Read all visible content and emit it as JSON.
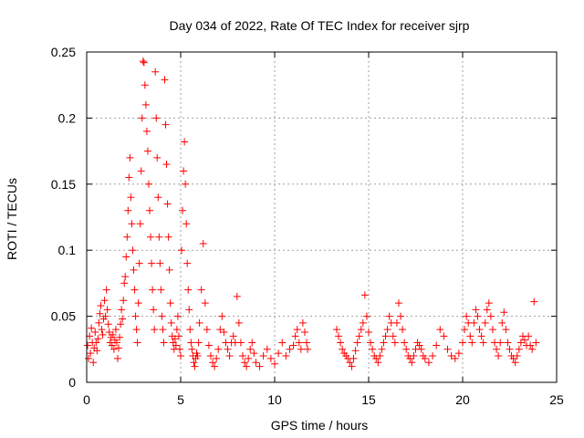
{
  "chart_data": {
    "type": "scatter",
    "title": "Day 034 of 2022, Rate Of TEC Index for receiver sjrp",
    "xlabel": "GPS time / hours",
    "ylabel": "ROTI / TECUs",
    "xlim": [
      0,
      25
    ],
    "ylim": [
      0,
      0.25
    ],
    "xticks": [
      0,
      5,
      10,
      15,
      20,
      25
    ],
    "yticks": [
      0,
      0.05,
      0.1,
      0.15,
      0.2,
      0.25
    ],
    "xtick_labels": [
      "0",
      "5",
      "10",
      "15",
      "20",
      "25"
    ],
    "ytick_labels": [
      "0",
      "0.05",
      "0.1",
      "0.15",
      "0.2",
      "0.25"
    ],
    "grid": true,
    "marker": "+",
    "series": [
      {
        "name": "ROTI",
        "color": "#ff0000",
        "points": [
          [
            0.05,
            0.028
          ],
          [
            0.1,
            0.018
          ],
          [
            0.15,
            0.035
          ],
          [
            0.2,
            0.022
          ],
          [
            0.25,
            0.041
          ],
          [
            0.3,
            0.03
          ],
          [
            0.35,
            0.015
          ],
          [
            0.4,
            0.026
          ],
          [
            0.45,
            0.038
          ],
          [
            0.5,
            0.03
          ],
          [
            0.55,
            0.024
          ],
          [
            0.6,
            0.033
          ],
          [
            0.65,
            0.045
          ],
          [
            0.7,
            0.052
          ],
          [
            0.75,
            0.058
          ],
          [
            0.8,
            0.04
          ],
          [
            0.85,
            0.036
          ],
          [
            0.9,
            0.048
          ],
          [
            0.95,
            0.062
          ],
          [
            1.0,
            0.05
          ],
          [
            1.05,
            0.07
          ],
          [
            1.1,
            0.055
          ],
          [
            1.15,
            0.044
          ],
          [
            1.2,
            0.038
          ],
          [
            1.25,
            0.03
          ],
          [
            1.3,
            0.034
          ],
          [
            1.35,
            0.028
          ],
          [
            1.4,
            0.036
          ],
          [
            1.45,
            0.025
          ],
          [
            1.5,
            0.032
          ],
          [
            1.55,
            0.04
          ],
          [
            1.6,
            0.03
          ],
          [
            1.65,
            0.018
          ],
          [
            1.7,
            0.026
          ],
          [
            1.75,
            0.034
          ],
          [
            1.8,
            0.044
          ],
          [
            1.85,
            0.055
          ],
          [
            1.9,
            0.048
          ],
          [
            1.95,
            0.062
          ],
          [
            2.0,
            0.075
          ],
          [
            2.05,
            0.08
          ],
          [
            2.1,
            0.095
          ],
          [
            2.15,
            0.11
          ],
          [
            2.2,
            0.13
          ],
          [
            2.25,
            0.155
          ],
          [
            2.3,
            0.17
          ],
          [
            2.35,
            0.14
          ],
          [
            2.4,
            0.12
          ],
          [
            2.45,
            0.1
          ],
          [
            2.5,
            0.085
          ],
          [
            2.55,
            0.07
          ],
          [
            2.6,
            0.05
          ],
          [
            2.65,
            0.04
          ],
          [
            2.7,
            0.03
          ],
          [
            2.75,
            0.06
          ],
          [
            2.8,
            0.09
          ],
          [
            2.85,
            0.12
          ],
          [
            2.9,
            0.16
          ],
          [
            2.95,
            0.2
          ],
          [
            3.0,
            0.243
          ],
          [
            3.05,
            0.242
          ],
          [
            3.1,
            0.225
          ],
          [
            3.15,
            0.21
          ],
          [
            3.2,
            0.19
          ],
          [
            3.25,
            0.175
          ],
          [
            3.3,
            0.15
          ],
          [
            3.35,
            0.13
          ],
          [
            3.4,
            0.11
          ],
          [
            3.45,
            0.09
          ],
          [
            3.5,
            0.07
          ],
          [
            3.55,
            0.055
          ],
          [
            3.6,
            0.04
          ],
          [
            3.65,
            0.235
          ],
          [
            3.7,
            0.2
          ],
          [
            3.75,
            0.17
          ],
          [
            3.8,
            0.14
          ],
          [
            3.85,
            0.11
          ],
          [
            3.9,
            0.09
          ],
          [
            3.95,
            0.07
          ],
          [
            4.0,
            0.05
          ],
          [
            4.05,
            0.04
          ],
          [
            4.1,
            0.03
          ],
          [
            4.15,
            0.229
          ],
          [
            4.2,
            0.195
          ],
          [
            4.25,
            0.165
          ],
          [
            4.3,
            0.135
          ],
          [
            4.35,
            0.11
          ],
          [
            4.4,
            0.085
          ],
          [
            4.45,
            0.06
          ],
          [
            4.5,
            0.045
          ],
          [
            4.55,
            0.035
          ],
          [
            4.6,
            0.03
          ],
          [
            4.65,
            0.025
          ],
          [
            4.7,
            0.033
          ],
          [
            4.75,
            0.028
          ],
          [
            4.8,
            0.04
          ],
          [
            4.85,
            0.05
          ],
          [
            4.9,
            0.035
          ],
          [
            4.95,
            0.025
          ],
          [
            5.0,
            0.02
          ],
          [
            5.05,
            0.1
          ],
          [
            5.1,
            0.13
          ],
          [
            5.15,
            0.16
          ],
          [
            5.2,
            0.182
          ],
          [
            5.25,
            0.15
          ],
          [
            5.3,
            0.12
          ],
          [
            5.35,
            0.09
          ],
          [
            5.4,
            0.07
          ],
          [
            5.45,
            0.055
          ],
          [
            5.5,
            0.04
          ],
          [
            5.55,
            0.03
          ],
          [
            5.6,
            0.025
          ],
          [
            5.65,
            0.02
          ],
          [
            5.7,
            0.015
          ],
          [
            5.75,
            0.012
          ],
          [
            5.8,
            0.018
          ],
          [
            5.85,
            0.022
          ],
          [
            5.9,
            0.02
          ],
          [
            5.95,
            0.03
          ],
          [
            6.0,
            0.045
          ],
          [
            6.1,
            0.07
          ],
          [
            6.2,
            0.105
          ],
          [
            6.3,
            0.06
          ],
          [
            6.4,
            0.04
          ],
          [
            6.5,
            0.028
          ],
          [
            6.6,
            0.02
          ],
          [
            6.7,
            0.015
          ],
          [
            6.8,
            0.012
          ],
          [
            6.9,
            0.018
          ],
          [
            7.0,
            0.025
          ],
          [
            7.1,
            0.04
          ],
          [
            7.2,
            0.05
          ],
          [
            7.3,
            0.038
          ],
          [
            7.4,
            0.03
          ],
          [
            7.5,
            0.025
          ],
          [
            7.6,
            0.02
          ],
          [
            7.7,
            0.03
          ],
          [
            7.8,
            0.035
          ],
          [
            7.9,
            0.03
          ],
          [
            8.0,
            0.065
          ],
          [
            8.1,
            0.045
          ],
          [
            8.2,
            0.03
          ],
          [
            8.3,
            0.02
          ],
          [
            8.4,
            0.015
          ],
          [
            8.5,
            0.012
          ],
          [
            8.6,
            0.018
          ],
          [
            8.7,
            0.025
          ],
          [
            8.8,
            0.03
          ],
          [
            8.9,
            0.022
          ],
          [
            9.0,
            0.015
          ],
          [
            9.2,
            0.012
          ],
          [
            9.4,
            0.02
          ],
          [
            9.6,
            0.025
          ],
          [
            9.8,
            0.018
          ],
          [
            10.0,
            0.014
          ],
          [
            10.2,
            0.022
          ],
          [
            10.4,
            0.03
          ],
          [
            10.6,
            0.02
          ],
          [
            10.8,
            0.025
          ],
          [
            11.0,
            0.028
          ],
          [
            11.1,
            0.035
          ],
          [
            11.2,
            0.04
          ],
          [
            11.3,
            0.03
          ],
          [
            11.4,
            0.025
          ],
          [
            11.5,
            0.045
          ],
          [
            11.6,
            0.038
          ],
          [
            11.7,
            0.03
          ],
          [
            11.75,
            0.025
          ],
          [
            13.3,
            0.04
          ],
          [
            13.4,
            0.035
          ],
          [
            13.5,
            0.03
          ],
          [
            13.6,
            0.025
          ],
          [
            13.7,
            0.022
          ],
          [
            13.8,
            0.02
          ],
          [
            13.9,
            0.018
          ],
          [
            14.0,
            0.015
          ],
          [
            14.1,
            0.012
          ],
          [
            14.2,
            0.018
          ],
          [
            14.3,
            0.024
          ],
          [
            14.4,
            0.03
          ],
          [
            14.5,
            0.035
          ],
          [
            14.6,
            0.04
          ],
          [
            14.7,
            0.045
          ],
          [
            14.8,
            0.066
          ],
          [
            14.9,
            0.05
          ],
          [
            15.0,
            0.038
          ],
          [
            15.1,
            0.03
          ],
          [
            15.2,
            0.025
          ],
          [
            15.3,
            0.02
          ],
          [
            15.4,
            0.018
          ],
          [
            15.5,
            0.015
          ],
          [
            15.6,
            0.02
          ],
          [
            15.7,
            0.025
          ],
          [
            15.8,
            0.03
          ],
          [
            15.9,
            0.035
          ],
          [
            16.0,
            0.04
          ],
          [
            16.1,
            0.05
          ],
          [
            16.2,
            0.045
          ],
          [
            16.3,
            0.035
          ],
          [
            16.4,
            0.03
          ],
          [
            16.5,
            0.045
          ],
          [
            16.6,
            0.06
          ],
          [
            16.7,
            0.05
          ],
          [
            16.8,
            0.04
          ],
          [
            16.9,
            0.03
          ],
          [
            17.0,
            0.025
          ],
          [
            17.1,
            0.02
          ],
          [
            17.2,
            0.018
          ],
          [
            17.3,
            0.015
          ],
          [
            17.4,
            0.02
          ],
          [
            17.5,
            0.025
          ],
          [
            17.6,
            0.03
          ],
          [
            17.7,
            0.028
          ],
          [
            17.8,
            0.025
          ],
          [
            17.9,
            0.02
          ],
          [
            18.0,
            0.018
          ],
          [
            18.2,
            0.015
          ],
          [
            18.4,
            0.02
          ],
          [
            18.6,
            0.028
          ],
          [
            18.8,
            0.04
          ],
          [
            19.0,
            0.035
          ],
          [
            19.2,
            0.025
          ],
          [
            19.4,
            0.02
          ],
          [
            19.6,
            0.018
          ],
          [
            19.8,
            0.022
          ],
          [
            20.0,
            0.03
          ],
          [
            20.1,
            0.04
          ],
          [
            20.2,
            0.05
          ],
          [
            20.3,
            0.045
          ],
          [
            20.4,
            0.035
          ],
          [
            20.5,
            0.03
          ],
          [
            20.6,
            0.045
          ],
          [
            20.7,
            0.055
          ],
          [
            20.8,
            0.05
          ],
          [
            20.9,
            0.04
          ],
          [
            21.0,
            0.035
          ],
          [
            21.1,
            0.03
          ],
          [
            21.2,
            0.045
          ],
          [
            21.3,
            0.055
          ],
          [
            21.4,
            0.06
          ],
          [
            21.5,
            0.05
          ],
          [
            21.6,
            0.04
          ],
          [
            21.7,
            0.03
          ],
          [
            21.8,
            0.025
          ],
          [
            21.9,
            0.02
          ],
          [
            22.0,
            0.03
          ],
          [
            22.1,
            0.045
          ],
          [
            22.2,
            0.053
          ],
          [
            22.3,
            0.04
          ],
          [
            22.4,
            0.03
          ],
          [
            22.5,
            0.025
          ],
          [
            22.6,
            0.02
          ],
          [
            22.7,
            0.018
          ],
          [
            22.8,
            0.015
          ],
          [
            22.9,
            0.02
          ],
          [
            23.0,
            0.025
          ],
          [
            23.1,
            0.03
          ],
          [
            23.2,
            0.035
          ],
          [
            23.3,
            0.032
          ],
          [
            23.4,
            0.028
          ],
          [
            23.5,
            0.035
          ],
          [
            23.6,
            0.028
          ],
          [
            23.7,
            0.025
          ],
          [
            23.8,
            0.061
          ],
          [
            23.9,
            0.03
          ]
        ]
      }
    ]
  }
}
